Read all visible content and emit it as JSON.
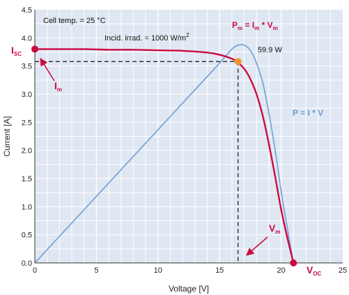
{
  "chart_data": {
    "type": "line",
    "xlabel": "Voltage [V]",
    "ylabel": "Current [A]",
    "xlim": [
      0,
      25
    ],
    "ylim": [
      0,
      4.5
    ],
    "x_ticks": [
      "0",
      "5",
      "10",
      "15",
      "20",
      "25"
    ],
    "x_tick_values": [
      0,
      5,
      10,
      15,
      20,
      25
    ],
    "y_ticks": [
      "0.0",
      "0.5",
      "1.0",
      "1.5",
      "2.0",
      "2.5",
      "3.0",
      "3.5",
      "4.0",
      "4.5"
    ],
    "y_tick_values": [
      0,
      0.5,
      1.0,
      1.5,
      2.0,
      2.5,
      3.0,
      3.5,
      4.0,
      4.5
    ],
    "grid": true,
    "series": [
      {
        "color": "#cc0a3f",
        "x": [
          0,
          2,
          4,
          6,
          8,
          10,
          12,
          14,
          15,
          16,
          16.5,
          17,
          17.5,
          18,
          18.5,
          19,
          19.5,
          20,
          20.5,
          21
        ],
        "y": [
          3.8,
          3.8,
          3.8,
          3.79,
          3.79,
          3.78,
          3.77,
          3.74,
          3.7,
          3.63,
          3.56,
          3.45,
          3.27,
          3.0,
          2.62,
          2.12,
          1.55,
          0.95,
          0.45,
          0.0
        ]
      },
      {
        "color": "#7aa6d8",
        "x": [
          0,
          15,
          16,
          16.5,
          17,
          17.5,
          18,
          18.5,
          19,
          19.5,
          20,
          20.5,
          21
        ],
        "y": [
          0,
          3.55,
          3.8,
          3.87,
          3.87,
          3.78,
          3.55,
          3.21,
          2.67,
          2.03,
          1.27,
          0.62,
          0.0
        ]
      }
    ],
    "mpp": {
      "x": 16.5,
      "y": 3.58
    },
    "isc_point": {
      "x": 0,
      "y": 3.8
    },
    "voc_point": {
      "x": 21,
      "y": 0
    }
  },
  "annotations": {
    "cell_temp": "Cell temp. = 25 °C",
    "irradiance": "Incid. irrad. = 1000 W/m",
    "irradiance_sup": "2",
    "pm_formula": {
      "p": "P",
      "m1": "m",
      "eq": " = I",
      "m2": "m",
      "times": " * V",
      "m3": "m"
    },
    "pmax_value": "59.9 W",
    "p_formula": "P = I * V",
    "isc": {
      "main": "I",
      "sub": "SC"
    },
    "im": {
      "main": "I",
      "sub": "m"
    },
    "vm": {
      "main": "V",
      "sub": "m"
    },
    "voc": {
      "main": "V",
      "sub": "OC"
    }
  },
  "colors": {
    "iv_curve": "#cc0a3f",
    "power_curve": "#7aa6d8",
    "mpp_marker": "#f29a2e",
    "plot_background": "#dfe7f3",
    "grid": "#ffffff"
  }
}
